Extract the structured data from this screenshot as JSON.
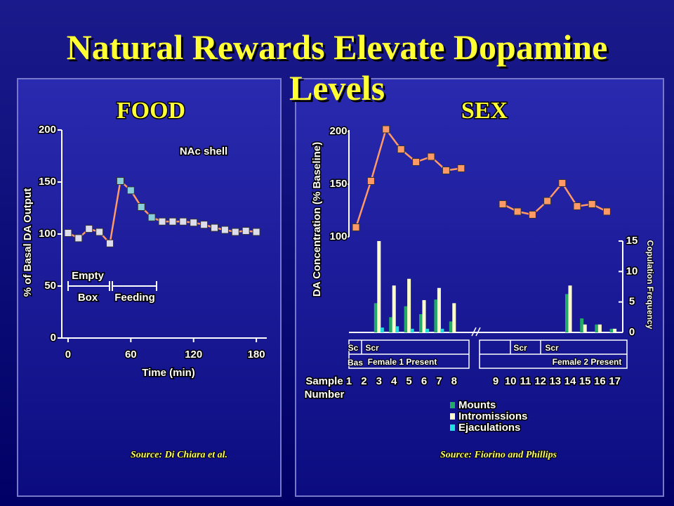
{
  "title": "Natural Rewards Elevate Dopamine Levels",
  "chart_data": [
    {
      "type": "line",
      "title": "FOOD",
      "source": "Source: Di Chiara et al.",
      "xlabel": "Time (min)",
      "ylabel": "% of Basal DA Output",
      "annotations": [
        "NAc shell",
        "Empty",
        "Box",
        "Feeding"
      ],
      "x": [
        0,
        10,
        20,
        30,
        40,
        50,
        60,
        70,
        80,
        90,
        100,
        110,
        120,
        130,
        140,
        150,
        160,
        170,
        180
      ],
      "values": [
        101,
        96,
        105,
        102,
        91,
        151,
        142,
        126,
        116,
        112,
        112,
        112,
        111,
        109,
        106,
        104,
        102,
        103,
        102
      ],
      "color": "#ff9966",
      "marker_colors": [
        "#ddddee",
        "#ddddee",
        "#ddddee",
        "#ddddee",
        "#ddddee",
        "#88ccdd",
        "#88ccdd",
        "#88ccdd",
        "#88ccdd",
        "#ddddee",
        "#ddddee",
        "#ddddee",
        "#ddddee",
        "#ddddee",
        "#ddddee",
        "#ddddee",
        "#ddddee",
        "#ddddee",
        "#ddddee"
      ],
      "xlim": [
        -6,
        190
      ],
      "xticks": [
        0,
        60,
        120,
        180
      ],
      "ylim": [
        0,
        200
      ],
      "yticks": [
        0,
        50,
        100,
        150,
        200
      ]
    },
    {
      "type": "combo",
      "title": "SEX",
      "source": "Source: Fiorino and Phillips",
      "xlabel": [
        "Sample",
        "Number"
      ],
      "ylabel": "DA Concentration (% Baseline)",
      "y2label": "Copulation Frequency",
      "phase_labels": [
        "Sc",
        "Scr",
        "Bas",
        "Female 1 Present",
        "Scr",
        "Scr",
        "Female 2 Present"
      ],
      "xticks": [
        1,
        2,
        3,
        4,
        5,
        6,
        7,
        8,
        9,
        10,
        11,
        12,
        13,
        14,
        15,
        16,
        17
      ],
      "ylim": [
        100,
        200
      ],
      "yticks": [
        100,
        150,
        200
      ],
      "y2lim": [
        0,
        15
      ],
      "y2ticks": [
        0,
        5,
        10,
        15
      ],
      "line": {
        "x": [
          1,
          2,
          3,
          4,
          5,
          6,
          7,
          8,
          9,
          10,
          11,
          12,
          13,
          14,
          15,
          16
        ],
        "values": [
          109,
          153,
          202,
          183,
          171,
          176,
          163,
          165,
          131,
          124,
          121,
          134,
          151,
          129,
          131,
          124
        ],
        "color": "#ff9966"
      },
      "bar_x": [
        3,
        4,
        5,
        6,
        7,
        8,
        14,
        15,
        16,
        17
      ],
      "series": [
        {
          "name": "Mounts",
          "color": "#22aa66",
          "values": [
            4.8,
            2.5,
            4.3,
            3,
            5.4,
            1.8,
            6.3,
            2.3,
            1.3,
            0.6
          ]
        },
        {
          "name": "Intromissions",
          "color": "#ffffcc",
          "values": [
            15,
            7.7,
            8.8,
            5.3,
            7.3,
            4.8,
            7.7,
            1.3,
            1.3,
            0.6
          ]
        },
        {
          "name": "Ejaculations",
          "color": "#22dddd",
          "values": [
            0.8,
            1,
            0.6,
            0.6,
            0.6,
            0,
            0,
            0,
            0,
            0
          ]
        }
      ]
    }
  ]
}
